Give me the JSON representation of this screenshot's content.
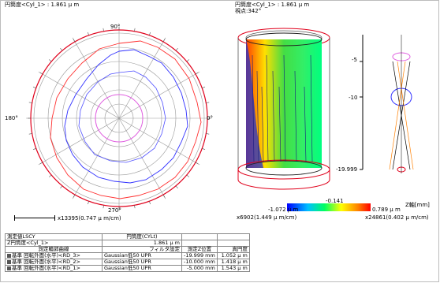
{
  "roundness_plot": {
    "title": "円筒度<Cyl_1> : 1.861 μ m",
    "angle_top": "90°",
    "angle_left": "180°",
    "angle_right": "0°",
    "angle_bottom": "270°",
    "scale": "x13395(0.747 μ m/cm)"
  },
  "cylinder_3d": {
    "title": "円筒度<Cyl_1> : 1.861 μ m",
    "viewpoint": "視点:342°",
    "z_top": "-5",
    "z_mid": "-10",
    "z_bottom": "-19.999",
    "colorbar_min": "-1.072 μ m",
    "colorbar_mid": "-0.141",
    "colorbar_max": "0.789 μ m",
    "z_axis_label": "Z軸[mm]",
    "scale_left": "x6902(1.449 μ m/cm)",
    "scale_right": "x24861(0.402 μ m/cm)"
  },
  "results": {
    "row1": [
      "測定値LSCY",
      "円筒度(CYLt)",
      "",
      ""
    ],
    "row2": [
      "Z円筒度<Cyl_1>",
      "1.861 μ m",
      "",
      ""
    ],
    "header": [
      "測定輪郭曲線",
      "フィルタ設定",
      "測定Z位置",
      "真円度"
    ],
    "rows": [
      [
        "基準 回転外面(水平)<RD_3>",
        "Gaussian低50 UPR",
        "-19.999 mm",
        "1.052 μ m"
      ],
      [
        "基準 回転外面(水平)<RD_2>",
        "Gaussian低50 UPR",
        "-10.000 mm",
        "1.418 μ m"
      ],
      [
        "基準 回転外面(水平)<RD_1>",
        "Gaussian低50 UPR",
        "-5.000 mm",
        "1.543 μ m"
      ]
    ]
  },
  "colors": {
    "outer_circle": "#e0001b",
    "pink_circle": "#e060e0",
    "blue_trace": "#3030ff",
    "red_trace": "#ff3030"
  }
}
